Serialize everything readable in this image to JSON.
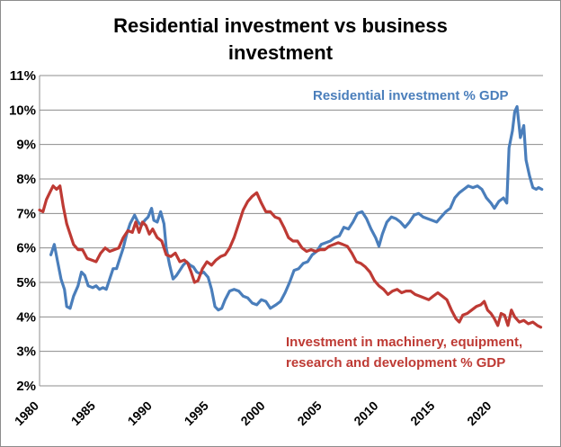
{
  "chart_data": {
    "type": "line",
    "title_line1": "Residential investment vs business",
    "title_line2": "investment",
    "xlabel": "",
    "ylabel": "",
    "xlim": [
      1980,
      2024.5
    ],
    "ylim": [
      2,
      11
    ],
    "y_ticks": [
      "2%",
      "3%",
      "4%",
      "5%",
      "6%",
      "7%",
      "8%",
      "9%",
      "10%",
      "11%"
    ],
    "x_ticks": [
      "1980",
      "1985",
      "1990",
      "1995",
      "2000",
      "2005",
      "2010",
      "2015",
      "2020"
    ],
    "grid": "horizontal",
    "legend": "inline annotations",
    "series": [
      {
        "name": "Residential investment % GDP",
        "color": "#4a7ebb",
        "points": [
          [
            1981.0,
            5.8
          ],
          [
            1981.3,
            6.1
          ],
          [
            1981.6,
            5.6
          ],
          [
            1981.9,
            5.1
          ],
          [
            1982.2,
            4.8
          ],
          [
            1982.4,
            4.3
          ],
          [
            1982.7,
            4.25
          ],
          [
            1983.0,
            4.6
          ],
          [
            1983.4,
            4.9
          ],
          [
            1983.7,
            5.3
          ],
          [
            1984.0,
            5.2
          ],
          [
            1984.3,
            4.9
          ],
          [
            1984.7,
            4.85
          ],
          [
            1985.0,
            4.9
          ],
          [
            1985.3,
            4.8
          ],
          [
            1985.6,
            4.85
          ],
          [
            1985.9,
            4.8
          ],
          [
            1986.2,
            5.1
          ],
          [
            1986.5,
            5.4
          ],
          [
            1986.8,
            5.4
          ],
          [
            1987.1,
            5.7
          ],
          [
            1987.4,
            6.0
          ],
          [
            1987.7,
            6.4
          ],
          [
            1988.0,
            6.7
          ],
          [
            1988.4,
            6.95
          ],
          [
            1988.7,
            6.75
          ],
          [
            1989.0,
            6.65
          ],
          [
            1989.3,
            6.8
          ],
          [
            1989.6,
            6.9
          ],
          [
            1989.9,
            7.15
          ],
          [
            1990.1,
            6.8
          ],
          [
            1990.4,
            6.75
          ],
          [
            1990.7,
            7.05
          ],
          [
            1991.0,
            6.7
          ],
          [
            1991.2,
            6.0
          ],
          [
            1991.5,
            5.5
          ],
          [
            1991.8,
            5.1
          ],
          [
            1992.1,
            5.2
          ],
          [
            1992.4,
            5.35
          ],
          [
            1992.7,
            5.5
          ],
          [
            1993.0,
            5.6
          ],
          [
            1993.3,
            5.5
          ],
          [
            1993.6,
            5.45
          ],
          [
            1993.9,
            5.3
          ],
          [
            1994.2,
            5.25
          ],
          [
            1994.5,
            5.3
          ],
          [
            1994.9,
            5.15
          ],
          [
            1995.2,
            4.8
          ],
          [
            1995.5,
            4.3
          ],
          [
            1995.8,
            4.2
          ],
          [
            1996.1,
            4.25
          ],
          [
            1996.4,
            4.5
          ],
          [
            1996.8,
            4.75
          ],
          [
            1997.2,
            4.8
          ],
          [
            1997.6,
            4.75
          ],
          [
            1998.0,
            4.6
          ],
          [
            1998.4,
            4.55
          ],
          [
            1998.8,
            4.4
          ],
          [
            1999.2,
            4.35
          ],
          [
            1999.6,
            4.5
          ],
          [
            2000.0,
            4.45
          ],
          [
            2000.4,
            4.25
          ],
          [
            2000.9,
            4.35
          ],
          [
            2001.3,
            4.45
          ],
          [
            2001.7,
            4.7
          ],
          [
            2002.1,
            5.0
          ],
          [
            2002.5,
            5.35
          ],
          [
            2002.9,
            5.4
          ],
          [
            2003.3,
            5.55
          ],
          [
            2003.7,
            5.6
          ],
          [
            2004.1,
            5.8
          ],
          [
            2004.5,
            5.9
          ],
          [
            2004.9,
            6.1
          ],
          [
            2005.3,
            6.15
          ],
          [
            2005.7,
            6.2
          ],
          [
            2006.1,
            6.3
          ],
          [
            2006.5,
            6.35
          ],
          [
            2006.9,
            6.6
          ],
          [
            2007.3,
            6.55
          ],
          [
            2007.7,
            6.75
          ],
          [
            2008.1,
            7.0
          ],
          [
            2008.5,
            7.05
          ],
          [
            2008.9,
            6.85
          ],
          [
            2009.3,
            6.55
          ],
          [
            2009.7,
            6.3
          ],
          [
            2010.0,
            6.05
          ],
          [
            2010.3,
            6.4
          ],
          [
            2010.7,
            6.75
          ],
          [
            2011.1,
            6.9
          ],
          [
            2011.5,
            6.85
          ],
          [
            2011.9,
            6.75
          ],
          [
            2012.3,
            6.6
          ],
          [
            2012.7,
            6.75
          ],
          [
            2013.1,
            6.95
          ],
          [
            2013.5,
            7.0
          ],
          [
            2013.9,
            6.9
          ],
          [
            2014.3,
            6.85
          ],
          [
            2014.7,
            6.8
          ],
          [
            2015.1,
            6.75
          ],
          [
            2015.5,
            6.9
          ],
          [
            2015.9,
            7.05
          ],
          [
            2016.3,
            7.15
          ],
          [
            2016.7,
            7.45
          ],
          [
            2017.1,
            7.6
          ],
          [
            2017.5,
            7.7
          ],
          [
            2017.9,
            7.8
          ],
          [
            2018.3,
            7.75
          ],
          [
            2018.7,
            7.8
          ],
          [
            2019.1,
            7.7
          ],
          [
            2019.5,
            7.45
          ],
          [
            2019.9,
            7.3
          ],
          [
            2020.2,
            7.15
          ],
          [
            2020.6,
            7.35
          ],
          [
            2021.0,
            7.45
          ],
          [
            2021.3,
            7.3
          ],
          [
            2021.5,
            8.9
          ],
          [
            2021.8,
            9.4
          ],
          [
            2022.0,
            9.95
          ],
          [
            2022.2,
            10.1
          ],
          [
            2022.5,
            9.2
          ],
          [
            2022.8,
            9.55
          ],
          [
            2023.0,
            8.55
          ],
          [
            2023.3,
            8.1
          ],
          [
            2023.6,
            7.75
          ],
          [
            2023.9,
            7.7
          ],
          [
            2024.1,
            7.75
          ],
          [
            2024.4,
            7.7
          ]
        ]
      },
      {
        "name": "Investment in machinery, equipment, research and development % GDP",
        "color": "#be3a34",
        "points": [
          [
            1980.0,
            7.1
          ],
          [
            1980.3,
            7.05
          ],
          [
            1980.6,
            7.4
          ],
          [
            1980.9,
            7.6
          ],
          [
            1981.2,
            7.8
          ],
          [
            1981.5,
            7.7
          ],
          [
            1981.8,
            7.8
          ],
          [
            1982.1,
            7.2
          ],
          [
            1982.4,
            6.7
          ],
          [
            1982.7,
            6.4
          ],
          [
            1983.0,
            6.1
          ],
          [
            1983.4,
            5.95
          ],
          [
            1983.8,
            5.95
          ],
          [
            1984.2,
            5.7
          ],
          [
            1984.6,
            5.65
          ],
          [
            1985.0,
            5.6
          ],
          [
            1985.4,
            5.85
          ],
          [
            1985.8,
            6.0
          ],
          [
            1986.2,
            5.9
          ],
          [
            1986.6,
            5.95
          ],
          [
            1987.0,
            6.0
          ],
          [
            1987.4,
            6.3
          ],
          [
            1987.8,
            6.5
          ],
          [
            1988.2,
            6.45
          ],
          [
            1988.5,
            6.75
          ],
          [
            1988.8,
            6.45
          ],
          [
            1989.1,
            6.75
          ],
          [
            1989.4,
            6.65
          ],
          [
            1989.7,
            6.4
          ],
          [
            1990.0,
            6.55
          ],
          [
            1990.4,
            6.3
          ],
          [
            1990.8,
            6.2
          ],
          [
            1991.2,
            5.8
          ],
          [
            1991.6,
            5.75
          ],
          [
            1992.0,
            5.85
          ],
          [
            1992.4,
            5.6
          ],
          [
            1992.8,
            5.65
          ],
          [
            1993.1,
            5.55
          ],
          [
            1993.4,
            5.3
          ],
          [
            1993.7,
            5.0
          ],
          [
            1994.0,
            5.05
          ],
          [
            1994.4,
            5.4
          ],
          [
            1994.8,
            5.6
          ],
          [
            1995.2,
            5.5
          ],
          [
            1995.6,
            5.65
          ],
          [
            1996.0,
            5.75
          ],
          [
            1996.4,
            5.8
          ],
          [
            1996.8,
            6.0
          ],
          [
            1997.2,
            6.3
          ],
          [
            1997.6,
            6.7
          ],
          [
            1998.0,
            7.1
          ],
          [
            1998.4,
            7.35
          ],
          [
            1998.8,
            7.5
          ],
          [
            1999.2,
            7.6
          ],
          [
            1999.6,
            7.3
          ],
          [
            2000.0,
            7.05
          ],
          [
            2000.4,
            7.05
          ],
          [
            2000.8,
            6.9
          ],
          [
            2001.2,
            6.85
          ],
          [
            2001.6,
            6.6
          ],
          [
            2002.0,
            6.3
          ],
          [
            2002.4,
            6.2
          ],
          [
            2002.8,
            6.2
          ],
          [
            2003.2,
            6.0
          ],
          [
            2003.6,
            5.9
          ],
          [
            2004.0,
            5.95
          ],
          [
            2004.4,
            5.9
          ],
          [
            2004.8,
            5.95
          ],
          [
            2005.2,
            5.95
          ],
          [
            2005.6,
            6.05
          ],
          [
            2006.0,
            6.1
          ],
          [
            2006.4,
            6.15
          ],
          [
            2006.8,
            6.1
          ],
          [
            2007.2,
            6.05
          ],
          [
            2007.6,
            5.85
          ],
          [
            2008.0,
            5.6
          ],
          [
            2008.4,
            5.55
          ],
          [
            2008.8,
            5.45
          ],
          [
            2009.2,
            5.3
          ],
          [
            2009.6,
            5.05
          ],
          [
            2010.0,
            4.9
          ],
          [
            2010.4,
            4.8
          ],
          [
            2010.8,
            4.65
          ],
          [
            2011.2,
            4.75
          ],
          [
            2011.6,
            4.8
          ],
          [
            2012.0,
            4.7
          ],
          [
            2012.4,
            4.75
          ],
          [
            2012.8,
            4.75
          ],
          [
            2013.2,
            4.65
          ],
          [
            2013.6,
            4.6
          ],
          [
            2014.0,
            4.55
          ],
          [
            2014.4,
            4.5
          ],
          [
            2014.8,
            4.6
          ],
          [
            2015.2,
            4.7
          ],
          [
            2015.6,
            4.6
          ],
          [
            2016.0,
            4.5
          ],
          [
            2016.4,
            4.2
          ],
          [
            2016.8,
            3.95
          ],
          [
            2017.1,
            3.85
          ],
          [
            2017.4,
            4.05
          ],
          [
            2017.8,
            4.1
          ],
          [
            2018.2,
            4.2
          ],
          [
            2018.6,
            4.3
          ],
          [
            2019.0,
            4.35
          ],
          [
            2019.3,
            4.45
          ],
          [
            2019.6,
            4.2
          ],
          [
            2019.9,
            4.1
          ],
          [
            2020.2,
            3.95
          ],
          [
            2020.5,
            3.75
          ],
          [
            2020.8,
            4.1
          ],
          [
            2021.1,
            4.05
          ],
          [
            2021.4,
            3.75
          ],
          [
            2021.7,
            4.2
          ],
          [
            2022.0,
            4.0
          ],
          [
            2022.4,
            3.85
          ],
          [
            2022.8,
            3.9
          ],
          [
            2023.2,
            3.8
          ],
          [
            2023.6,
            3.85
          ],
          [
            2024.0,
            3.75
          ],
          [
            2024.3,
            3.7
          ]
        ]
      }
    ],
    "annotations": {
      "residential": "Residential investment % GDP",
      "investment_line1": "Investment in machinery, equipment,",
      "investment_line2": "research and development % GDP"
    }
  }
}
